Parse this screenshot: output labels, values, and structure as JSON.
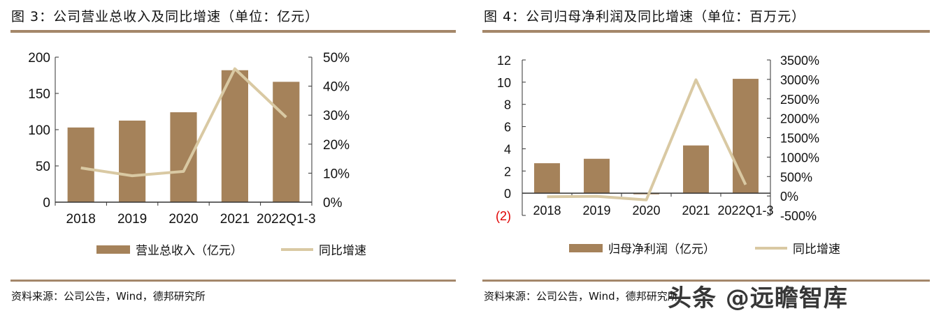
{
  "colors": {
    "bar": "#a5825a",
    "line": "#d9c9a3",
    "rule": "#a4876a",
    "negative_label": "#e00000"
  },
  "watermark": "头条 @远瞻智库",
  "chart_data": [
    {
      "type": "bar+line",
      "title": "图 3：公司营业总收入及同比增速（单位：亿元）",
      "source": "资料来源：公司公告，Wind，德邦研究所",
      "categories": [
        "2018",
        "2019",
        "2020",
        "2021",
        "2022Q1-3"
      ],
      "series": [
        {
          "name": "营业总收入（亿元）",
          "type": "bar",
          "axis": "left",
          "values": [
            103,
            112.5,
            124,
            182,
            166
          ]
        },
        {
          "name": "同比增速",
          "type": "line",
          "axis": "right",
          "values": [
            11.8,
            9.1,
            10.6,
            46,
            29.3
          ]
        }
      ],
      "left_axis": {
        "range": [
          0,
          200
        ],
        "ticks": [
          "0",
          "50",
          "100",
          "150",
          "200"
        ],
        "tick_values": [
          0,
          50,
          100,
          150,
          200
        ]
      },
      "right_axis": {
        "range": [
          0,
          50
        ],
        "ticks": [
          "0%",
          "10%",
          "20%",
          "30%",
          "40%",
          "50%"
        ],
        "tick_values": [
          0,
          10,
          20,
          30,
          40,
          50
        ]
      },
      "legend": "bottom"
    },
    {
      "type": "bar+line",
      "title": "图 4：公司归母净利润及同比增速（单位：百万元）",
      "source": "资料来源：公司公告，Wind，德邦研究所",
      "categories": [
        "2018",
        "2019",
        "2020",
        "2021",
        "2022Q1-3"
      ],
      "series": [
        {
          "name": "归母净利润（亿元）",
          "type": "bar",
          "axis": "left",
          "values": [
            2.7,
            3.1,
            -0.1,
            4.3,
            10.3
          ]
        },
        {
          "name": "同比增速",
          "type": "line",
          "axis": "right",
          "values": [
            -20,
            -10,
            -100,
            2990,
            290
          ]
        }
      ],
      "left_axis": {
        "range": [
          -2,
          12
        ],
        "ticks": [
          "(2)",
          "0",
          "2",
          "4",
          "6",
          "8",
          "10",
          "12"
        ],
        "tick_values": [
          -2,
          0,
          2,
          4,
          6,
          8,
          10,
          12
        ]
      },
      "right_axis": {
        "range": [
          -500,
          3500
        ],
        "ticks": [
          "-500%",
          "0%",
          "500%",
          "1000%",
          "1500%",
          "2000%",
          "2500%",
          "3000%",
          "3500%"
        ],
        "tick_values": [
          -500,
          0,
          500,
          1000,
          1500,
          2000,
          2500,
          3000,
          3500
        ]
      },
      "legend": "bottom"
    }
  ]
}
